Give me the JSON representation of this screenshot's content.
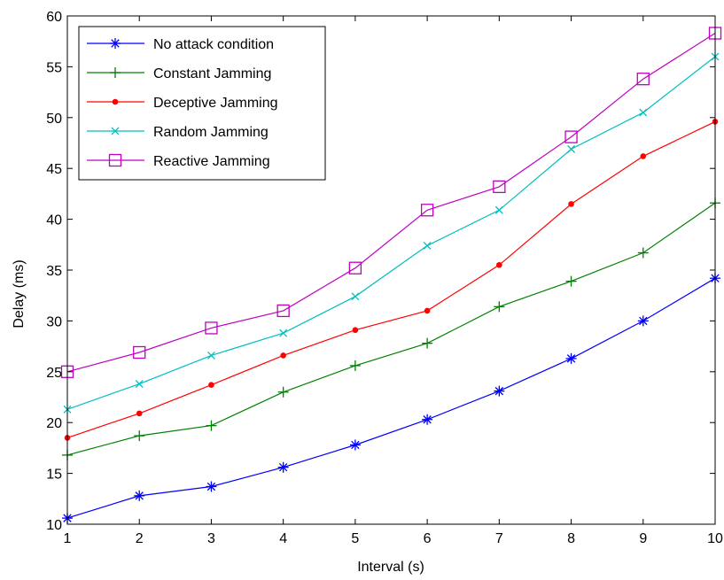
{
  "chart_data": {
    "type": "line",
    "xlabel": "Interval (s)",
    "ylabel": "Delay (ms)",
    "xlim": [
      1,
      10
    ],
    "ylim": [
      10,
      60
    ],
    "xticks": [
      "1",
      "2",
      "3",
      "4",
      "5",
      "6",
      "7",
      "8",
      "9",
      "10"
    ],
    "yticks": [
      "10",
      "15",
      "20",
      "25",
      "30",
      "35",
      "40",
      "45",
      "50",
      "55",
      "60"
    ],
    "grid": false,
    "legend_position": "top-left",
    "x": [
      1,
      2,
      3,
      4,
      5,
      6,
      7,
      8,
      9,
      10
    ],
    "series": [
      {
        "name": "No attack condition",
        "color": "#0000ff",
        "marker": "asterisk",
        "values": [
          10.6,
          12.8,
          13.7,
          15.6,
          17.8,
          20.3,
          23.1,
          26.3,
          30.0,
          34.2
        ]
      },
      {
        "name": "Constant Jamming",
        "color": "#008000",
        "marker": "plus",
        "values": [
          16.8,
          18.7,
          19.7,
          23.0,
          25.6,
          27.8,
          31.4,
          33.9,
          36.7,
          41.6
        ]
      },
      {
        "name": "Deceptive Jamming",
        "color": "#ff0000",
        "marker": "dot",
        "values": [
          18.5,
          20.9,
          23.7,
          26.6,
          29.1,
          31.0,
          35.5,
          41.5,
          46.2,
          49.6
        ]
      },
      {
        "name": "Random Jamming",
        "color": "#00bfbf",
        "marker": "cross",
        "values": [
          21.3,
          23.8,
          26.6,
          28.8,
          32.4,
          37.4,
          40.9,
          46.9,
          50.5,
          56.0
        ]
      },
      {
        "name": "Reactive Jamming",
        "color": "#bf00bf",
        "marker": "square",
        "values": [
          25.0,
          26.9,
          29.3,
          31.0,
          35.2,
          40.9,
          43.2,
          48.1,
          53.8,
          58.3
        ]
      }
    ]
  }
}
